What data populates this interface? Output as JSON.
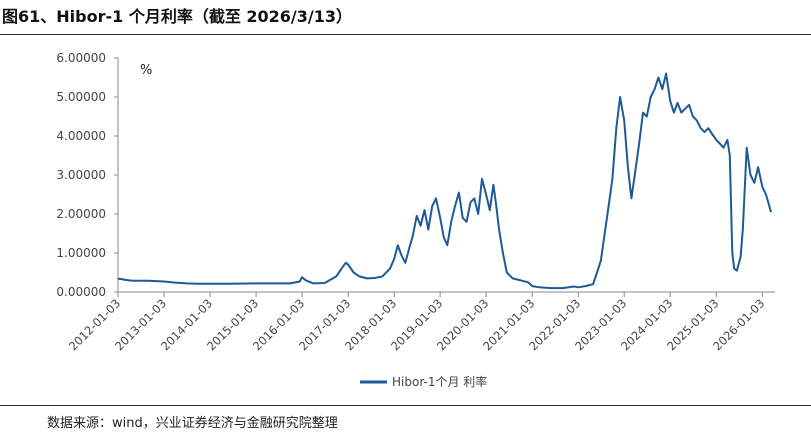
{
  "header": {
    "title": "图61、Hibor-1 个月利率（截至 2026/3/13）"
  },
  "footer": {
    "source": "数据来源：wind，兴业证券经济与金融研究院整理"
  },
  "chart_data": {
    "type": "line",
    "unit_label": "%",
    "ylim": [
      0,
      6
    ],
    "y_ticks": [
      "0.00000",
      "1.00000",
      "2.00000",
      "3.00000",
      "4.00000",
      "5.00000",
      "6.00000"
    ],
    "x_ticks": [
      "2012-01-03",
      "2013-01-03",
      "2014-01-03",
      "2015-01-03",
      "2016-01-03",
      "2017-01-03",
      "2018-01-03",
      "2019-01-03",
      "2020-01-03",
      "2021-01-03",
      "2022-01-03",
      "2023-01-03",
      "2024-01-03",
      "2025-01-03",
      "2026-01-03"
    ],
    "x_range": [
      "2012-01-03",
      "2026-03-13"
    ],
    "grid": false,
    "legend_position": "bottom",
    "color": "#1F5A96",
    "series": [
      {
        "name": "Hibor-1个月 利率",
        "points": [
          [
            "2012-01-03",
            0.34
          ],
          [
            "2012-02-01",
            0.33
          ],
          [
            "2012-03-01",
            0.31
          ],
          [
            "2012-05-01",
            0.29
          ],
          [
            "2012-07-01",
            0.29
          ],
          [
            "2012-09-01",
            0.29
          ],
          [
            "2012-11-01",
            0.28
          ],
          [
            "2013-01-03",
            0.27
          ],
          [
            "2013-04-01",
            0.24
          ],
          [
            "2013-07-01",
            0.22
          ],
          [
            "2013-10-01",
            0.21
          ],
          [
            "2014-01-03",
            0.21
          ],
          [
            "2014-06-01",
            0.21
          ],
          [
            "2015-01-03",
            0.22
          ],
          [
            "2015-06-01",
            0.22
          ],
          [
            "2015-10-01",
            0.22
          ],
          [
            "2015-12-15",
            0.27
          ],
          [
            "2016-01-03",
            0.38
          ],
          [
            "2016-02-01",
            0.3
          ],
          [
            "2016-04-01",
            0.22
          ],
          [
            "2016-07-01",
            0.23
          ],
          [
            "2016-10-01",
            0.4
          ],
          [
            "2016-11-15",
            0.62
          ],
          [
            "2016-12-15",
            0.75
          ],
          [
            "2017-01-03",
            0.7
          ],
          [
            "2017-02-15",
            0.5
          ],
          [
            "2017-04-01",
            0.4
          ],
          [
            "2017-06-01",
            0.35
          ],
          [
            "2017-08-01",
            0.36
          ],
          [
            "2017-10-01",
            0.4
          ],
          [
            "2017-12-01",
            0.6
          ],
          [
            "2018-01-03",
            0.85
          ],
          [
            "2018-02-01",
            1.2
          ],
          [
            "2018-03-01",
            0.95
          ],
          [
            "2018-04-01",
            0.75
          ],
          [
            "2018-05-01",
            1.1
          ],
          [
            "2018-06-01",
            1.45
          ],
          [
            "2018-07-01",
            1.95
          ],
          [
            "2018-08-01",
            1.7
          ],
          [
            "2018-09-01",
            2.1
          ],
          [
            "2018-10-01",
            1.6
          ],
          [
            "2018-11-01",
            2.2
          ],
          [
            "2018-12-01",
            2.4
          ],
          [
            "2019-01-03",
            1.9
          ],
          [
            "2019-02-01",
            1.4
          ],
          [
            "2019-03-01",
            1.2
          ],
          [
            "2019-04-01",
            1.8
          ],
          [
            "2019-05-01",
            2.2
          ],
          [
            "2019-06-01",
            2.55
          ],
          [
            "2019-07-01",
            1.9
          ],
          [
            "2019-08-01",
            1.8
          ],
          [
            "2019-09-01",
            2.3
          ],
          [
            "2019-10-01",
            2.4
          ],
          [
            "2019-11-01",
            2.0
          ],
          [
            "2019-12-01",
            2.9
          ],
          [
            "2020-01-03",
            2.5
          ],
          [
            "2020-02-01",
            2.1
          ],
          [
            "2020-03-01",
            2.75
          ],
          [
            "2020-03-20",
            2.3
          ],
          [
            "2020-04-15",
            1.6
          ],
          [
            "2020-05-15",
            1.0
          ],
          [
            "2020-06-15",
            0.5
          ],
          [
            "2020-08-01",
            0.35
          ],
          [
            "2020-10-01",
            0.3
          ],
          [
            "2020-12-01",
            0.25
          ],
          [
            "2021-01-03",
            0.15
          ],
          [
            "2021-03-01",
            0.12
          ],
          [
            "2021-06-01",
            0.1
          ],
          [
            "2021-09-01",
            0.1
          ],
          [
            "2021-12-01",
            0.14
          ],
          [
            "2022-01-03",
            0.12
          ],
          [
            "2022-03-01",
            0.15
          ],
          [
            "2022-05-01",
            0.2
          ],
          [
            "2022-06-01",
            0.5
          ],
          [
            "2022-07-01",
            0.8
          ],
          [
            "2022-08-01",
            1.5
          ],
          [
            "2022-09-01",
            2.2
          ],
          [
            "2022-10-01",
            2.9
          ],
          [
            "2022-11-01",
            4.2
          ],
          [
            "2022-12-01",
            5.0
          ],
          [
            "2023-01-03",
            4.4
          ],
          [
            "2023-02-01",
            3.2
          ],
          [
            "2023-03-01",
            2.4
          ],
          [
            "2023-04-01",
            3.1
          ],
          [
            "2023-05-01",
            3.8
          ],
          [
            "2023-06-01",
            4.6
          ],
          [
            "2023-07-01",
            4.5
          ],
          [
            "2023-08-01",
            5.0
          ],
          [
            "2023-09-01",
            5.2
          ],
          [
            "2023-10-01",
            5.5
          ],
          [
            "2023-11-01",
            5.2
          ],
          [
            "2023-12-01",
            5.6
          ],
          [
            "2024-01-03",
            4.9
          ],
          [
            "2024-02-01",
            4.6
          ],
          [
            "2024-03-01",
            4.85
          ],
          [
            "2024-04-01",
            4.6
          ],
          [
            "2024-05-01",
            4.7
          ],
          [
            "2024-06-01",
            4.8
          ],
          [
            "2024-07-01",
            4.5
          ],
          [
            "2024-08-01",
            4.4
          ],
          [
            "2024-09-01",
            4.2
          ],
          [
            "2024-10-01",
            4.1
          ],
          [
            "2024-11-01",
            4.2
          ],
          [
            "2024-12-01",
            4.05
          ],
          [
            "2025-01-03",
            3.9
          ],
          [
            "2025-02-01",
            3.8
          ],
          [
            "2025-03-01",
            3.7
          ],
          [
            "2025-04-01",
            3.9
          ],
          [
            "2025-04-20",
            3.5
          ],
          [
            "2025-05-10",
            1.0
          ],
          [
            "2025-05-25",
            0.6
          ],
          [
            "2025-06-15",
            0.55
          ],
          [
            "2025-07-15",
            0.9
          ],
          [
            "2025-08-01",
            1.6
          ],
          [
            "2025-09-01",
            3.7
          ],
          [
            "2025-10-01",
            3.0
          ],
          [
            "2025-11-01",
            2.8
          ],
          [
            "2025-12-01",
            3.2
          ],
          [
            "2026-01-03",
            2.7
          ],
          [
            "2026-02-01",
            2.5
          ],
          [
            "2026-03-13",
            2.05
          ]
        ]
      }
    ]
  }
}
